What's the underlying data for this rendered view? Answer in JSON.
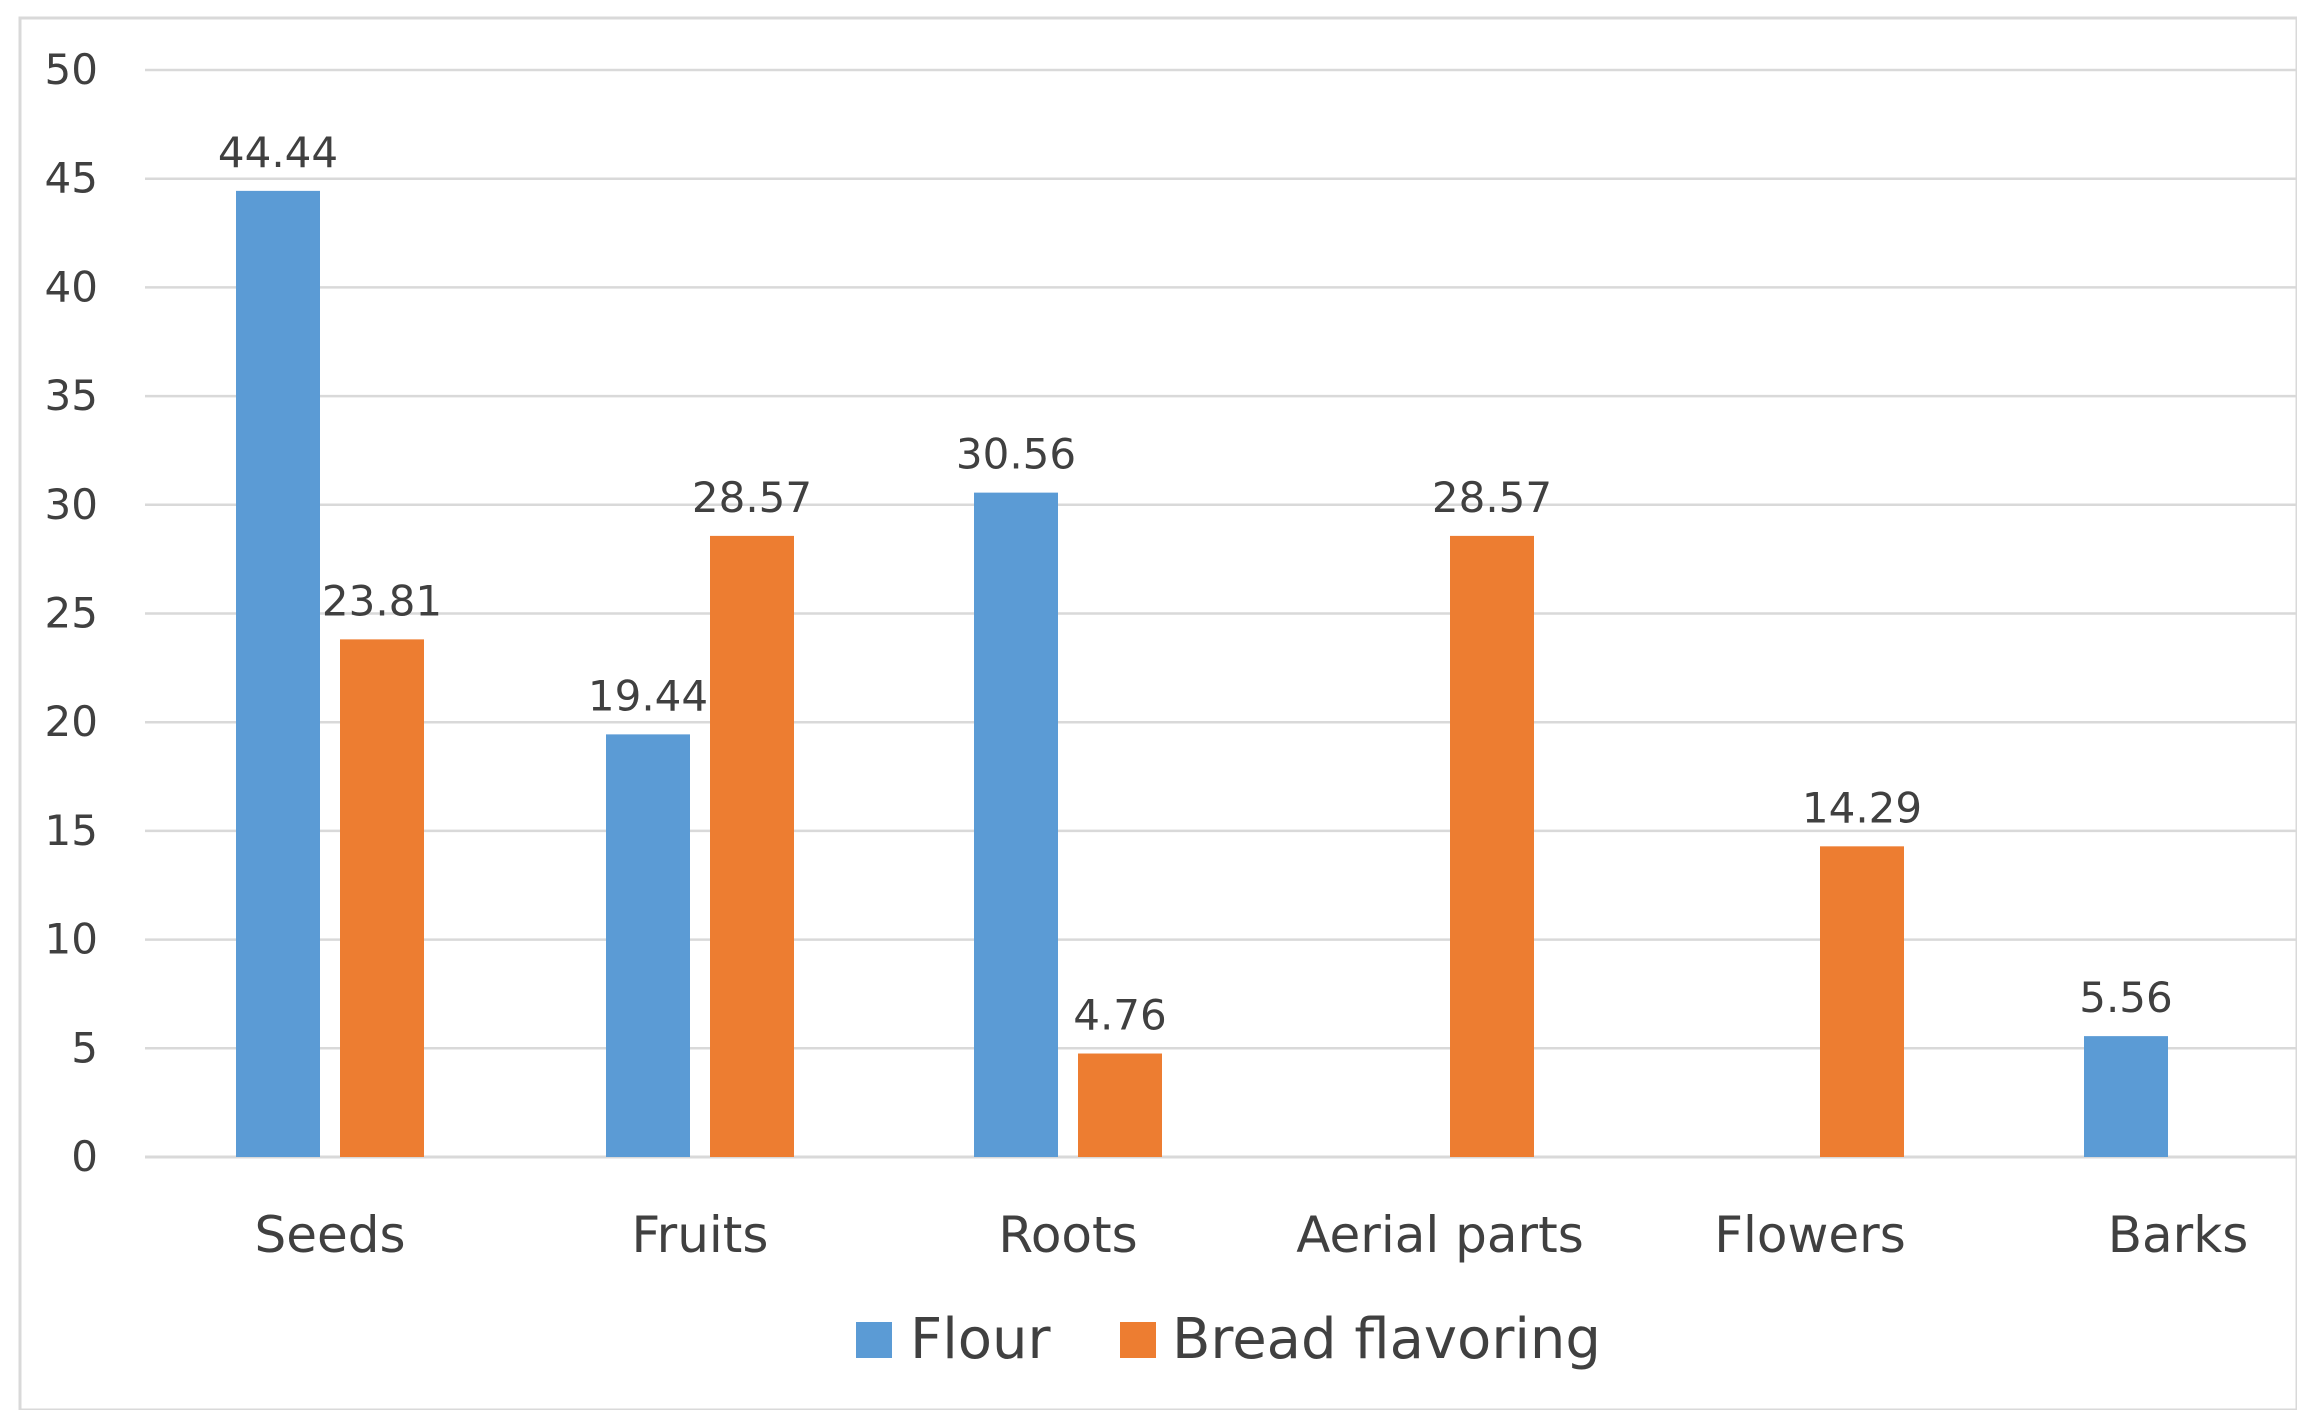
{
  "chart_data": {
    "type": "bar",
    "title": "",
    "xlabel": "",
    "ylabel": "",
    "ylim": [
      0,
      50
    ],
    "yticks": [
      "0",
      "5",
      "10",
      "15",
      "20",
      "25",
      "30",
      "35",
      "40",
      "45",
      "50"
    ],
    "grid": true,
    "legend_position": "bottom",
    "categories": [
      "Seeds",
      "Fruits",
      "Roots",
      "Aerial parts",
      "Flowers",
      "Barks"
    ],
    "series": [
      {
        "name": "Flour",
        "color": "#5B9BD5",
        "values": [
          44.44,
          19.44,
          30.56,
          null,
          null,
          5.56
        ],
        "labels": [
          "44.44",
          "19.44",
          "30.56",
          "",
          "",
          "5.56"
        ]
      },
      {
        "name": "Bread flavoring",
        "color": "#ED7D31",
        "values": [
          23.81,
          28.57,
          4.76,
          28.57,
          14.29,
          null
        ],
        "labels": [
          "23.81",
          "28.57",
          "4.76",
          "28.57",
          "14.29",
          ""
        ]
      }
    ]
  }
}
